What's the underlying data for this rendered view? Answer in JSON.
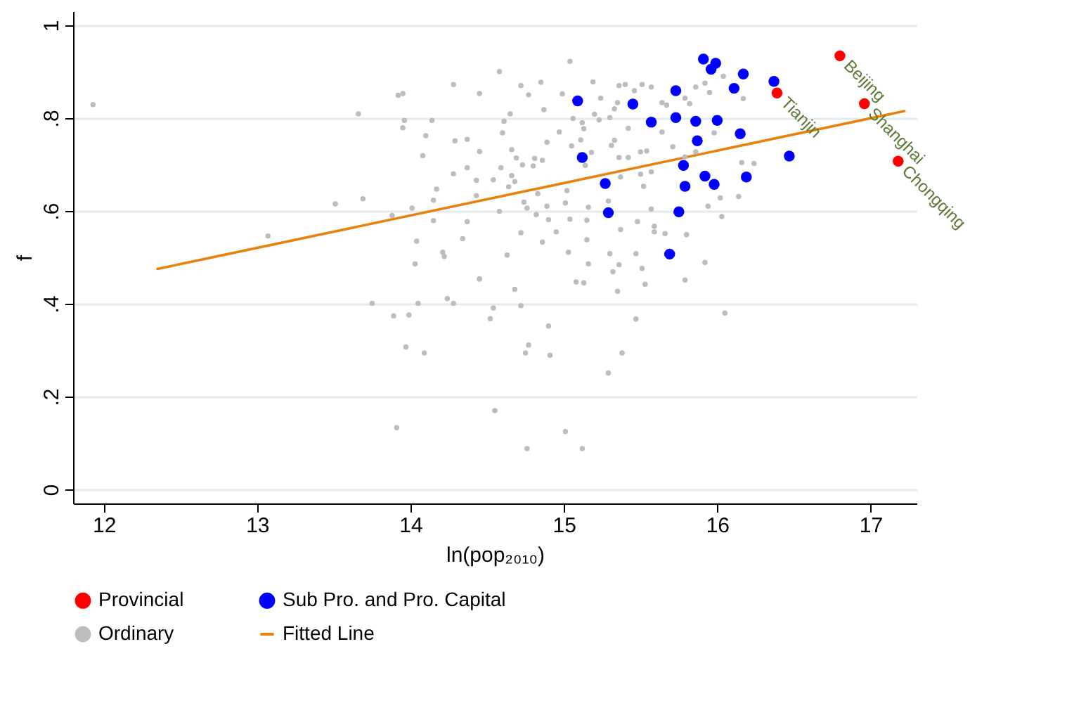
{
  "chart_data": {
    "type": "scatter",
    "xlabel": "ln(pop₂₀₁₀)",
    "ylabel": "f",
    "xlim": [
      11.8,
      17.3
    ],
    "ylim": [
      -0.03,
      1.03
    ],
    "xticks": [
      12,
      13,
      14,
      15,
      16,
      17
    ],
    "yticks": [
      0,
      {
        "value": 0.2,
        "label": ".2"
      },
      {
        "value": 0.4,
        "label": ".4"
      },
      {
        "value": 0.6,
        "label": ".6"
      },
      {
        "value": 0.8,
        "label": ".8"
      },
      1
    ],
    "grid": "y",
    "legend": "bottom",
    "series": [
      {
        "name": "Provincial",
        "type": "scatter",
        "marker": "circle",
        "color": "#ff0000",
        "x": [
          16.39,
          16.8,
          16.96,
          17.18
        ],
        "values": [
          0.854,
          0.934,
          0.831,
          0.707
        ]
      },
      {
        "name": "Sub Pro. and Pro. Capital",
        "type": "scatter",
        "marker": "circle",
        "color": "#0000ff",
        "x": [
          15.91,
          15.99,
          15.96,
          16.17,
          16.11,
          15.73,
          15.09,
          15.45,
          15.57,
          15.73,
          15.86,
          16.0,
          16.15,
          15.87,
          15.12,
          15.78,
          15.27,
          15.92,
          15.98,
          15.79,
          16.19,
          15.29,
          15.75,
          15.69,
          16.37,
          16.47
        ],
        "values": [
          0.927,
          0.918,
          0.905,
          0.895,
          0.864,
          0.859,
          0.837,
          0.83,
          0.791,
          0.801,
          0.793,
          0.795,
          0.766,
          0.751,
          0.715,
          0.698,
          0.659,
          0.675,
          0.657,
          0.653,
          0.673,
          0.596,
          0.598,
          0.507,
          0.879,
          0.718
        ]
      },
      {
        "name": "Ordinary",
        "type": "scatter",
        "marker": "circle",
        "color": "#bdbdbd",
        "x": [
          11.93,
          13.07,
          13.51,
          13.69,
          13.66,
          13.75,
          13.89,
          13.91,
          13.92,
          13.95,
          13.96,
          13.95,
          13.88,
          13.97,
          13.99,
          14.01,
          14.03,
          14.04,
          14.05,
          14.08,
          14.09,
          14.1,
          14.14,
          14.15,
          14.15,
          14.17,
          14.21,
          14.22,
          14.24,
          14.28,
          14.28,
          14.28,
          14.29,
          14.34,
          14.37,
          14.37,
          14.37,
          14.43,
          14.43,
          14.45,
          14.45,
          14.45,
          14.58,
          15.04,
          14.72,
          14.85,
          14.61,
          14.6,
          14.65,
          14.87,
          14.77,
          14.99,
          14.66,
          14.69,
          14.73,
          14.8,
          14.81,
          14.86,
          14.89,
          14.97,
          14.59,
          14.54,
          14.66,
          14.68,
          14.64,
          14.58,
          14.83,
          14.74,
          14.76,
          14.82,
          14.89,
          14.9,
          14.95,
          14.86,
          14.72,
          14.63,
          15.02,
          15.01,
          15.04,
          15.03,
          15.05,
          15.06,
          15.12,
          15.13,
          15.11,
          15.14,
          15.18,
          15.16,
          15.15,
          15.15,
          15.16,
          15.08,
          15.13,
          15.19,
          15.24,
          15.23,
          15.2,
          15.3,
          15.33,
          15.36,
          15.4,
          15.35,
          15.31,
          15.33,
          15.36,
          15.42,
          15.37,
          15.29,
          15.37,
          15.3,
          15.32,
          15.35,
          15.36,
          15.29,
          15.38,
          15.42,
          15.46,
          15.51,
          15.57,
          15.5,
          15.54,
          15.5,
          15.57,
          15.52,
          15.48,
          15.57,
          15.59,
          15.59,
          15.47,
          15.51,
          15.53,
          15.47,
          15.64,
          15.64,
          15.67,
          15.79,
          15.82,
          15.86,
          15.71,
          15.79,
          15.86,
          15.66,
          15.8,
          15.79,
          15.92,
          15.94,
          16.03,
          16.02,
          16.14,
          16.05,
          15.92,
          15.95,
          16.04,
          16.17,
          15.98,
          16.16,
          16.24,
          14.55,
          15.01,
          14.76,
          15.12,
          14.75,
          14.77,
          14.91,
          14.9,
          14.68,
          14.72,
          14.54,
          14.52,
          14.45
        ],
        "values": [
          0.829,
          0.546,
          0.615,
          0.626,
          0.809,
          0.401,
          0.374,
          0.133,
          0.849,
          0.853,
          0.795,
          0.779,
          0.59,
          0.307,
          0.376,
          0.606,
          0.486,
          0.535,
          0.401,
          0.719,
          0.294,
          0.762,
          0.795,
          0.579,
          0.623,
          0.647,
          0.511,
          0.502,
          0.411,
          0.872,
          0.68,
          0.401,
          0.751,
          0.54,
          0.754,
          0.693,
          0.577,
          0.666,
          0.633,
          0.853,
          0.728,
          0.453,
          0.9,
          0.922,
          0.87,
          0.877,
          0.793,
          0.768,
          0.809,
          0.818,
          0.85,
          0.852,
          0.732,
          0.714,
          0.699,
          0.697,
          0.713,
          0.709,
          0.748,
          0.77,
          0.693,
          0.667,
          0.676,
          0.663,
          0.652,
          0.599,
          0.637,
          0.619,
          0.606,
          0.592,
          0.61,
          0.581,
          0.555,
          0.533,
          0.553,
          0.505,
          0.644,
          0.617,
          0.582,
          0.511,
          0.74,
          0.799,
          0.79,
          0.777,
          0.753,
          0.698,
          0.726,
          0.608,
          0.58,
          0.538,
          0.486,
          0.447,
          0.445,
          0.878,
          0.843,
          0.796,
          0.808,
          0.801,
          0.82,
          0.87,
          0.872,
          0.833,
          0.741,
          0.752,
          0.715,
          0.715,
          0.673,
          0.621,
          0.56,
          0.508,
          0.469,
          0.427,
          0.484,
          0.251,
          0.294,
          0.778,
          0.859,
          0.872,
          0.867,
          0.727,
          0.729,
          0.679,
          0.684,
          0.653,
          0.577,
          0.604,
          0.567,
          0.555,
          0.508,
          0.476,
          0.442,
          0.367,
          0.833,
          0.77,
          0.828,
          0.843,
          0.831,
          0.867,
          0.738,
          0.716,
          0.727,
          0.551,
          0.549,
          0.451,
          0.489,
          0.61,
          0.588,
          0.628,
          0.631,
          0.38,
          0.875,
          0.855,
          0.89,
          0.842,
          0.768,
          0.704,
          0.702,
          0.17,
          0.125,
          0.088,
          0.088,
          0.294,
          0.311,
          0.289,
          0.352,
          0.431,
          0.396,
          0.391,
          0.368,
          0.454
        ]
      },
      {
        "name": "Fitted Line",
        "type": "line",
        "marker": "none",
        "color": "#e8820c",
        "x": [
          12.35,
          17.22
        ],
        "values": [
          0.475,
          0.815
        ]
      }
    ],
    "annotations": [
      {
        "text": "Tianjin",
        "x": 16.39,
        "y": 0.854
      },
      {
        "text": "Beijing",
        "x": 16.8,
        "y": 0.934
      },
      {
        "text": "Shanghai",
        "x": 16.96,
        "y": 0.831
      },
      {
        "text": "Chongqing",
        "x": 17.18,
        "y": 0.707
      }
    ]
  }
}
